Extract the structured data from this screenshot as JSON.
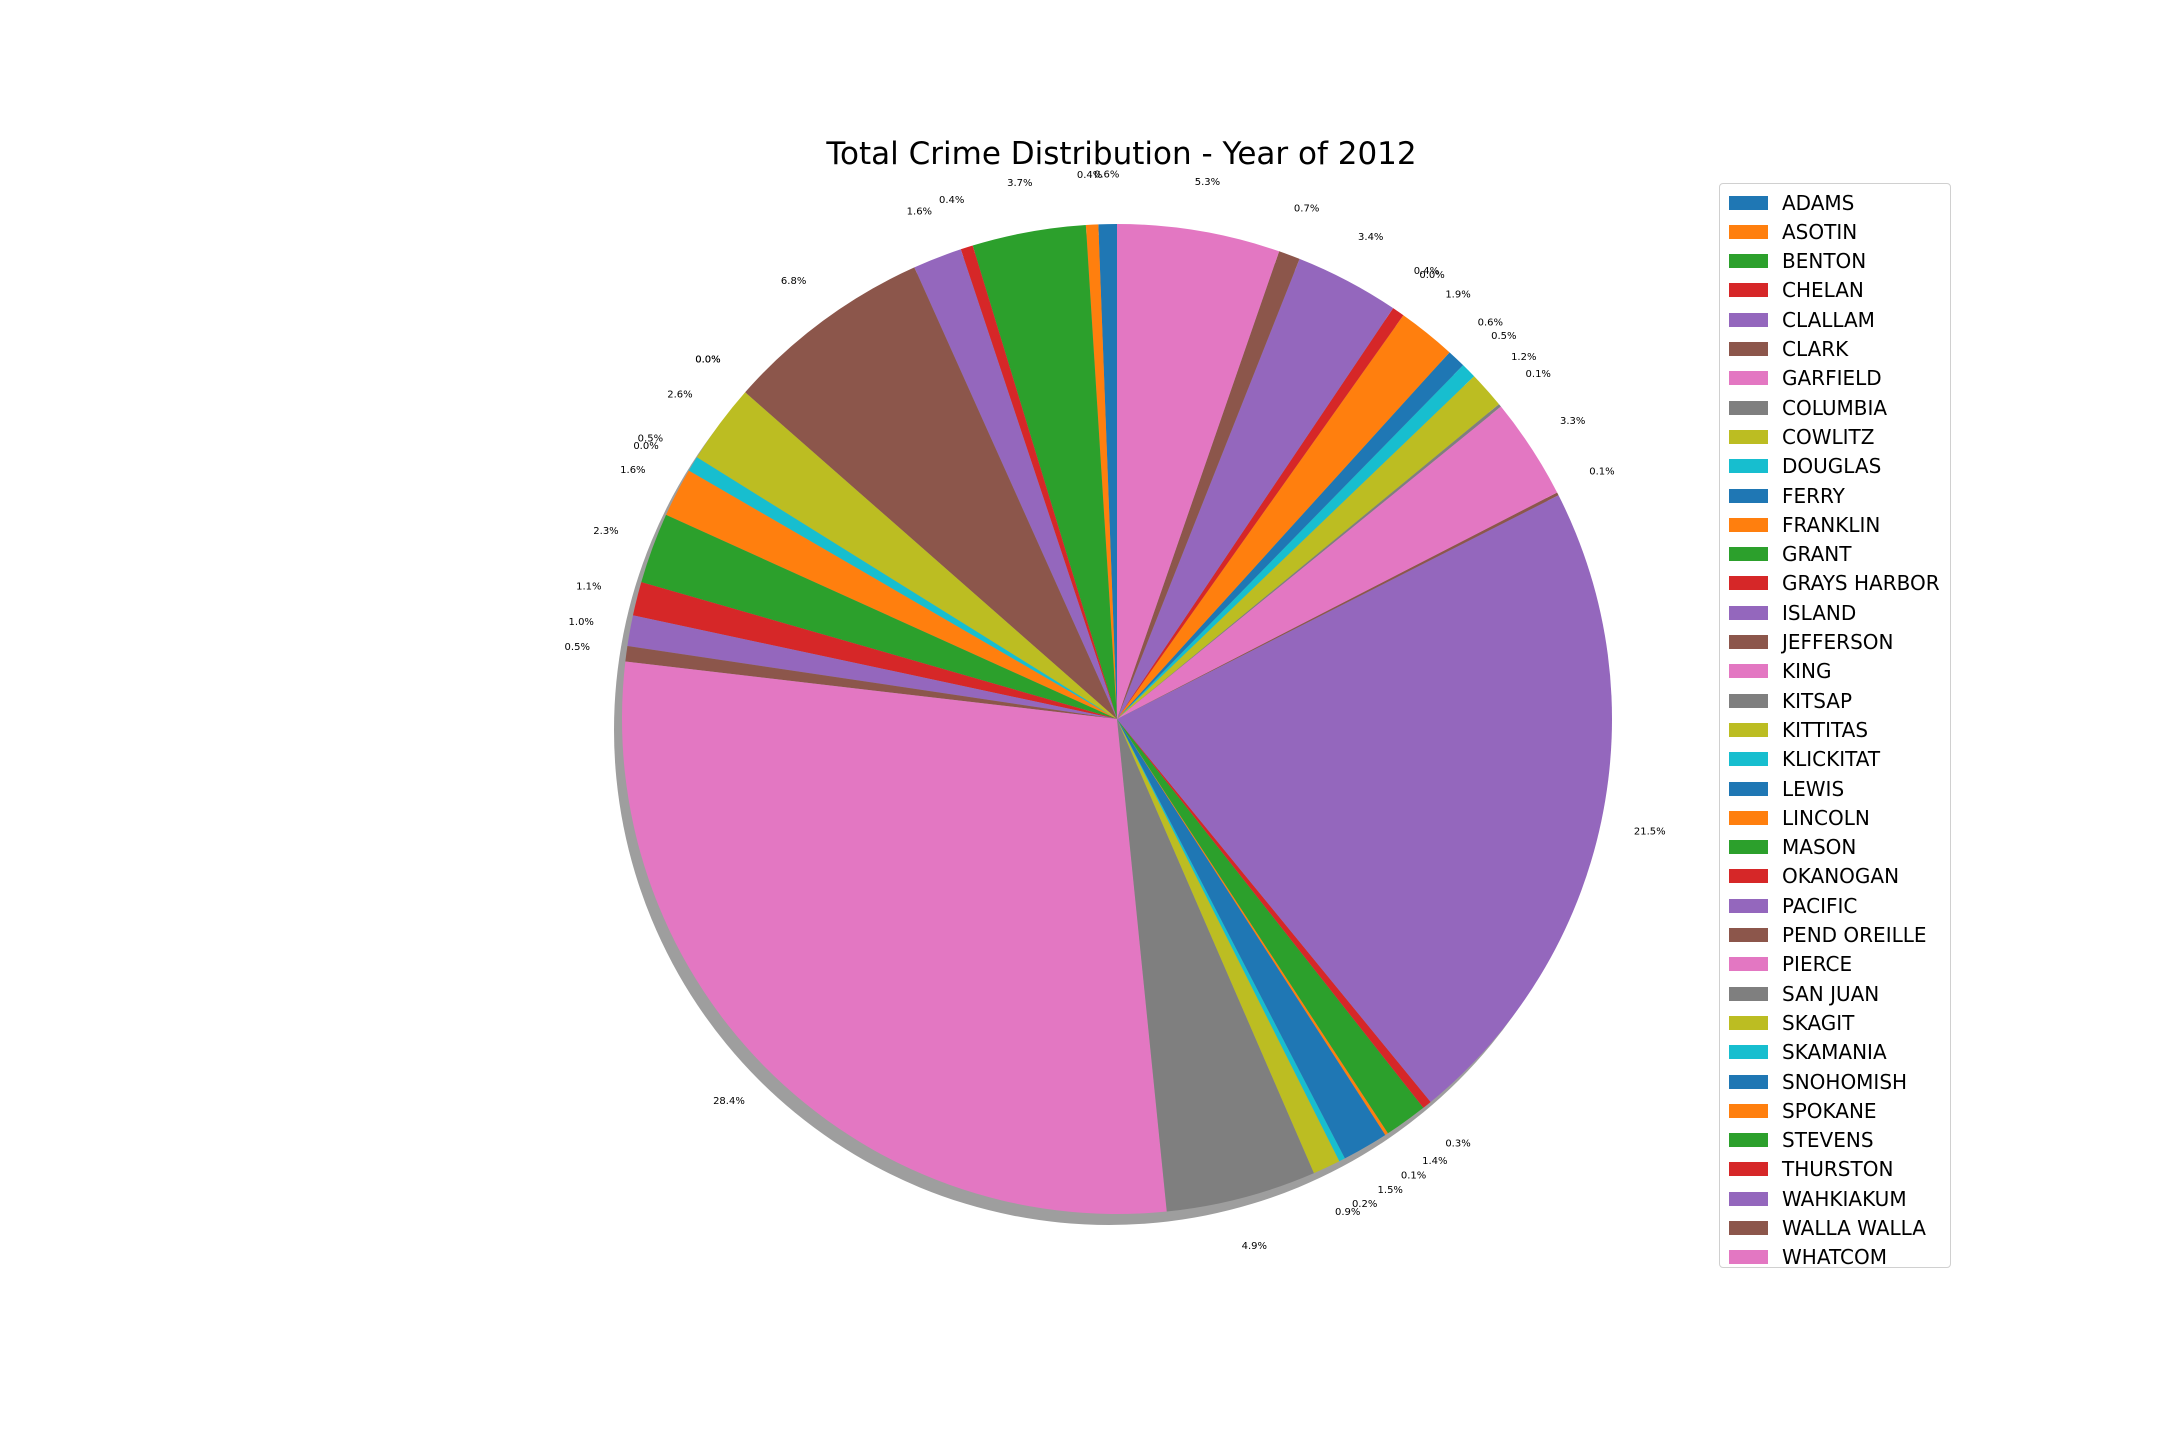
{
  "title": "Total Crime Distribution - Year of 2012",
  "colors": [
    "#1f77b4",
    "#ff7f0e",
    "#2ca02c",
    "#d62728",
    "#9467bd",
    "#8c564b",
    "#e377c2",
    "#7f7f7f",
    "#bcbd22",
    "#17becf"
  ],
  "chart_data": {
    "type": "pie",
    "title": "Total Crime Distribution - Year of 2012",
    "start_angle_deg": 90,
    "direction": "counterclockwise",
    "shadow": true,
    "legend_position": "right",
    "categories": [
      "ADAMS",
      "ASOTIN",
      "BENTON",
      "CHELAN",
      "CLALLAM",
      "CLARK",
      "GARFIELD",
      "COLUMBIA",
      "COWLITZ",
      "DOUGLAS",
      "FERRY",
      "FRANKLIN",
      "GRANT",
      "GRAYS HARBOR",
      "ISLAND",
      "JEFFERSON",
      "KING",
      "KITSAP",
      "KITTITAS",
      "KLICKITAT",
      "LEWIS",
      "LINCOLN",
      "MASON",
      "OKANOGAN",
      "PACIFIC",
      "PEND OREILLE",
      "PIERCE",
      "SAN JUAN",
      "SKAGIT",
      "SKAMANIA",
      "SNOHOMISH",
      "SPOKANE",
      "STEVENS",
      "THURSTON",
      "WAHKIAKUM",
      "WALLA WALLA",
      "WHATCOM"
    ],
    "values": [
      0.6,
      0.4,
      3.7,
      0.4,
      1.6,
      6.8,
      0.0,
      0.0,
      2.6,
      0.5,
      0.0,
      1.6,
      2.3,
      1.1,
      1.0,
      0.5,
      28.4,
      4.9,
      0.9,
      0.2,
      1.5,
      0.1,
      1.4,
      0.3,
      21.5,
      0.1,
      3.3,
      0.1,
      1.2,
      0.5,
      0.6,
      1.9,
      0.0,
      0.4,
      3.4,
      0.7,
      5.3
    ],
    "labels": [
      "0.6%",
      "0.4%",
      "3.7%",
      "0.4%",
      "1.6%",
      "6.8%",
      "0.0%",
      "0.0%",
      "2.6%",
      "0.5%",
      "0.0%",
      "1.6%",
      "2.3%",
      "1.1%",
      "1.0%",
      "0.5%",
      "28.4%",
      "4.9%",
      "0.9%",
      "0.2%",
      "1.5%",
      "0.1%",
      "1.4%",
      "0.3%",
      "21.5%",
      "0.1%",
      "3.3%",
      "0.1%",
      "1.2%",
      "0.5%",
      "0.6%",
      "1.9%",
      "0.0%",
      "0.4%",
      "3.4%",
      "0.7%",
      "5.3%"
    ]
  }
}
